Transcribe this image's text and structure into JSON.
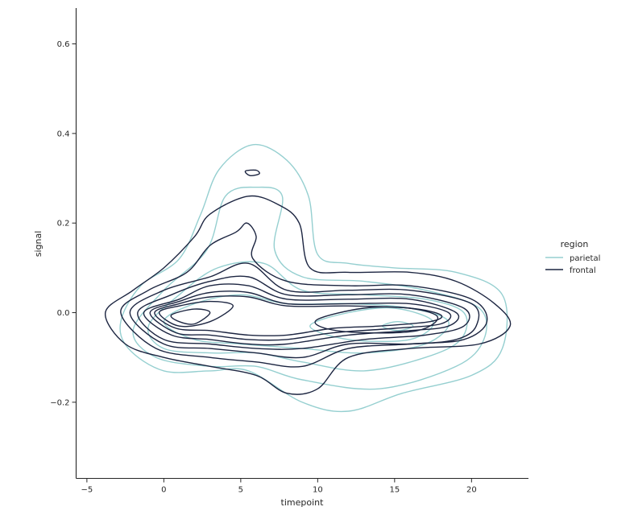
{
  "chart_data": {
    "type": "kde-contour",
    "xlabel": "timepoint",
    "ylabel": "signal",
    "xlim": [
      -5.7,
      23.7
    ],
    "ylim": [
      -0.37,
      0.68
    ],
    "xticks": [
      -5,
      0,
      5,
      10,
      15,
      20
    ],
    "yticks": [
      -0.2,
      0.0,
      0.2,
      0.4,
      0.6
    ],
    "grid": false,
    "legend": {
      "title": "region",
      "placement": "right"
    },
    "series": [
      {
        "name": "parietal",
        "color": "#95cfd0",
        "contours": [
          [
            [
              -2.8,
              -0.02
            ],
            [
              -1.5,
              0.06
            ],
            [
              1,
              0.12
            ],
            [
              2.4,
              0.22
            ],
            [
              3.6,
              0.32
            ],
            [
              5.8,
              0.375
            ],
            [
              8,
              0.34
            ],
            [
              9.4,
              0.26
            ],
            [
              10,
              0.13
            ],
            [
              12,
              0.11
            ],
            [
              15,
              0.1
            ],
            [
              19,
              0.09
            ],
            [
              22,
              0.04
            ],
            [
              22,
              -0.08
            ],
            [
              20,
              -0.14
            ],
            [
              15.5,
              -0.18
            ],
            [
              12,
              -0.22
            ],
            [
              9,
              -0.2
            ],
            [
              5.5,
              -0.13
            ],
            [
              3,
              -0.13
            ],
            [
              0,
              -0.13
            ],
            [
              -2.3,
              -0.08
            ]
          ],
          [
            [
              -2,
              -0.04
            ],
            [
              0,
              0.05
            ],
            [
              2.8,
              0.14
            ],
            [
              4,
              0.26
            ],
            [
              6,
              0.28
            ],
            [
              7.7,
              0.26
            ],
            [
              7.2,
              0.14
            ],
            [
              9,
              0.08
            ],
            [
              13,
              0.07
            ],
            [
              17,
              0.05
            ],
            [
              20.5,
              0.01
            ],
            [
              20.8,
              -0.06
            ],
            [
              19,
              -0.12
            ],
            [
              14,
              -0.17
            ],
            [
              9,
              -0.15
            ],
            [
              6,
              -0.12
            ],
            [
              3,
              -0.12
            ],
            [
              -0.5,
              -0.1
            ]
          ],
          [
            [
              -1,
              -0.03
            ],
            [
              1,
              0.04
            ],
            [
              3.5,
              0.1
            ],
            [
              6.5,
              0.11
            ],
            [
              9,
              0.05
            ],
            [
              13,
              0.04
            ],
            [
              17,
              0.03
            ],
            [
              19.5,
              0
            ],
            [
              19.3,
              -0.06
            ],
            [
              17,
              -0.1
            ],
            [
              13,
              -0.13
            ],
            [
              9,
              -0.11
            ],
            [
              6,
              -0.09
            ],
            [
              3,
              -0.09
            ],
            [
              0,
              -0.08
            ]
          ],
          [
            [
              0,
              -0.02
            ],
            [
              2,
              0.02
            ],
            [
              5,
              0.04
            ],
            [
              8,
              0.02
            ],
            [
              12,
              0.02
            ],
            [
              16,
              0.01
            ],
            [
              18.5,
              -0.02
            ],
            [
              17,
              -0.07
            ],
            [
              13,
              -0.09
            ],
            [
              9,
              -0.08
            ],
            [
              5,
              -0.07
            ],
            [
              2,
              -0.06
            ]
          ],
          [
            [
              9.5,
              -0.03
            ],
            [
              12,
              0.0
            ],
            [
              15,
              0.01
            ],
            [
              17.5,
              -0.02
            ],
            [
              16,
              -0.06
            ],
            [
              12,
              -0.06
            ]
          ],
          [
            [
              14.2,
              -0.03
            ],
            [
              15.2,
              -0.02
            ],
            [
              16.2,
              -0.03
            ],
            [
              15.2,
              -0.04
            ]
          ]
        ]
      },
      {
        "name": "frontal",
        "color": "#1c2541",
        "contours": [
          [
            [
              -3.8,
              0.0
            ],
            [
              -2,
              0.05
            ],
            [
              0,
              0.1
            ],
            [
              2,
              0.17
            ],
            [
              3,
              0.22
            ],
            [
              5.5,
              0.26
            ],
            [
              7.5,
              0.24
            ],
            [
              8.8,
              0.2
            ],
            [
              9.5,
              0.1
            ],
            [
              12,
              0.09
            ],
            [
              16,
              0.09
            ],
            [
              19,
              0.07
            ],
            [
              21.5,
              0.02
            ],
            [
              22.5,
              -0.03
            ],
            [
              20.5,
              -0.07
            ],
            [
              16,
              -0.08
            ],
            [
              12,
              -0.1
            ],
            [
              10,
              -0.17
            ],
            [
              8,
              -0.18
            ],
            [
              6,
              -0.14
            ],
            [
              3,
              -0.12
            ],
            [
              0,
              -0.1
            ],
            [
              -2.5,
              -0.07
            ]
          ],
          [
            [
              -2.8,
              0.0
            ],
            [
              -1,
              0.05
            ],
            [
              1.5,
              0.09
            ],
            [
              3,
              0.15
            ],
            [
              4.7,
              0.18
            ],
            [
              5.4,
              0.2
            ],
            [
              6,
              0.17
            ],
            [
              5.8,
              0.12
            ],
            [
              8,
              0.07
            ],
            [
              12,
              0.06
            ],
            [
              16,
              0.06
            ],
            [
              20,
              0.03
            ],
            [
              21,
              -0.02
            ],
            [
              19.5,
              -0.06
            ],
            [
              16,
              -0.07
            ],
            [
              12,
              -0.08
            ],
            [
              9,
              -0.12
            ],
            [
              6,
              -0.11
            ],
            [
              3,
              -0.1
            ],
            [
              -0.5,
              -0.08
            ]
          ],
          [
            [
              -2.2,
              0.0
            ],
            [
              0,
              0.05
            ],
            [
              3,
              0.08
            ],
            [
              5.5,
              0.11
            ],
            [
              8,
              0.05
            ],
            [
              12,
              0.05
            ],
            [
              16,
              0.05
            ],
            [
              20,
              0.02
            ],
            [
              20.3,
              -0.03
            ],
            [
              19,
              -0.06
            ],
            [
              16,
              -0.07
            ],
            [
              12,
              -0.07
            ],
            [
              9,
              -0.1
            ],
            [
              6,
              -0.09
            ],
            [
              3,
              -0.08
            ],
            [
              0,
              -0.07
            ]
          ],
          [
            [
              -1.7,
              0.0
            ],
            [
              0.5,
              0.04
            ],
            [
              3,
              0.07
            ],
            [
              5.5,
              0.08
            ],
            [
              8,
              0.04
            ],
            [
              12,
              0.04
            ],
            [
              16,
              0.04
            ],
            [
              19.5,
              0.01
            ],
            [
              19.5,
              -0.03
            ],
            [
              17,
              -0.05
            ],
            [
              13,
              -0.06
            ],
            [
              9,
              -0.08
            ],
            [
              6,
              -0.08
            ],
            [
              3,
              -0.07
            ],
            [
              0,
              -0.06
            ]
          ],
          [
            [
              -1.3,
              0.0
            ],
            [
              1,
              0.03
            ],
            [
              3,
              0.06
            ],
            [
              5.5,
              0.06
            ],
            [
              8,
              0.03
            ],
            [
              12,
              0.03
            ],
            [
              16,
              0.03
            ],
            [
              19,
              0.0
            ],
            [
              18.5,
              -0.03
            ],
            [
              16,
              -0.04
            ],
            [
              12,
              -0.05
            ],
            [
              8,
              -0.07
            ],
            [
              5.5,
              -0.07
            ],
            [
              3,
              -0.06
            ],
            [
              0.5,
              -0.05
            ]
          ],
          [
            [
              -0.9,
              0.0
            ],
            [
              1,
              0.025
            ],
            [
              3,
              0.045
            ],
            [
              5.5,
              0.045
            ],
            [
              8,
              0.02
            ],
            [
              12,
              0.02
            ],
            [
              16,
              0.02
            ],
            [
              18.5,
              0.0
            ],
            [
              18,
              -0.025
            ],
            [
              15,
              -0.035
            ],
            [
              11,
              -0.045
            ],
            [
              8,
              -0.06
            ],
            [
              5.5,
              -0.06
            ],
            [
              3,
              -0.05
            ],
            [
              0.8,
              -0.045
            ]
          ],
          [
            [
              -0.6,
              0.0
            ],
            [
              1,
              0.02
            ],
            [
              3,
              0.035
            ],
            [
              5.5,
              0.035
            ],
            [
              8,
              0.015
            ],
            [
              12,
              0.015
            ],
            [
              16,
              0.01
            ],
            [
              18,
              -0.005
            ],
            [
              17.3,
              -0.02
            ],
            [
              14,
              -0.03
            ],
            [
              11,
              -0.035
            ],
            [
              8,
              -0.05
            ],
            [
              5.5,
              -0.05
            ],
            [
              3,
              -0.04
            ],
            [
              0.8,
              -0.035
            ]
          ],
          [
            [
              -0.3,
              0.0
            ],
            [
              1,
              0.015
            ],
            [
              3,
              0.025
            ],
            [
              4.5,
              0.015
            ],
            [
              3,
              -0.02
            ],
            [
              1,
              -0.03
            ]
          ],
          [
            [
              0.5,
              -0.005
            ],
            [
              2,
              0.008
            ],
            [
              3,
              0.0
            ],
            [
              2,
              -0.025
            ],
            [
              1,
              -0.02
            ]
          ],
          [
            [
              10,
              -0.015
            ],
            [
              13,
              0.01
            ],
            [
              16,
              0.01
            ],
            [
              17.8,
              -0.01
            ],
            [
              16.5,
              -0.04
            ],
            [
              13,
              -0.045
            ],
            [
              10.5,
              -0.035
            ]
          ],
          [
            [
              5.3,
              0.316
            ],
            [
              6,
              0.318
            ],
            [
              6.2,
              0.31
            ],
            [
              5.6,
              0.306
            ]
          ]
        ]
      }
    ]
  }
}
